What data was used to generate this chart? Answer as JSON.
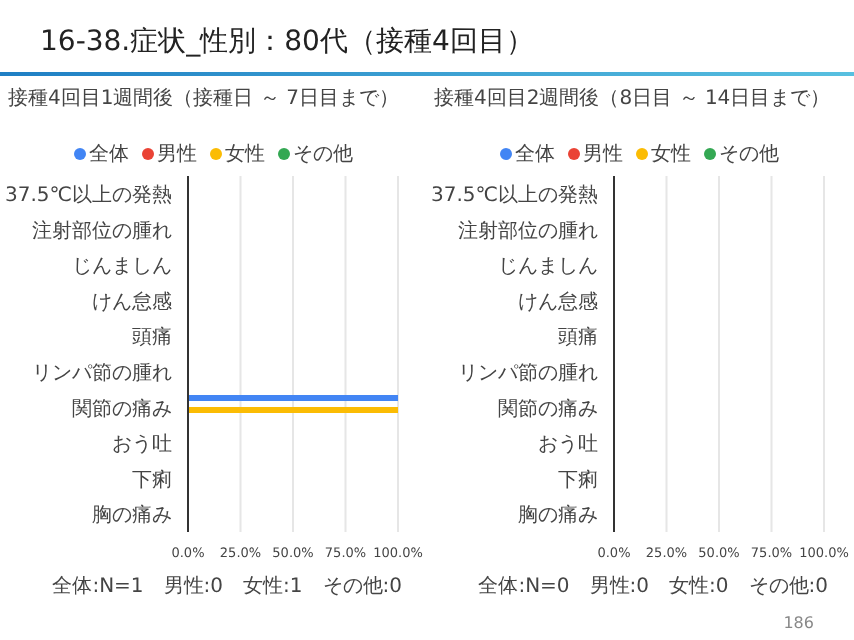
{
  "chart_data": [
    {
      "type": "bar",
      "orientation": "horizontal",
      "title": "16-38.症状_性別：80代（接種4回目）",
      "subtitle": "接種4回目1週間後（接種日 ～ 7日目まで）",
      "categories": [
        "37.5℃以上の発熱",
        "注射部位の腫れ",
        "じんましん",
        "けん怠感",
        "頭痛",
        "リンパ節の腫れ",
        "関節の痛み",
        "おう吐",
        "下痢",
        "胸の痛み"
      ],
      "series": [
        {
          "name": "全体",
          "color": "#4285f4",
          "values": [
            0,
            0,
            0,
            0,
            0,
            0,
            100,
            0,
            0,
            0
          ]
        },
        {
          "name": "男性",
          "color": "#ea4335",
          "values": [
            0,
            0,
            0,
            0,
            0,
            0,
            0,
            0,
            0,
            0
          ]
        },
        {
          "name": "女性",
          "color": "#fbbc04",
          "values": [
            0,
            0,
            0,
            0,
            0,
            0,
            100,
            0,
            0,
            0
          ]
        },
        {
          "name": "その他",
          "color": "#34a853",
          "values": [
            0,
            0,
            0,
            0,
            0,
            0,
            0,
            0,
            0,
            0
          ]
        }
      ],
      "xlim": [
        0,
        100
      ],
      "xticks": [
        {
          "value": 0,
          "label": "0.0%"
        },
        {
          "value": 25,
          "label": "25.0%"
        },
        {
          "value": 50,
          "label": "50.0%"
        },
        {
          "value": 75,
          "label": "75.0%"
        },
        {
          "value": 100,
          "label": "100.0%"
        }
      ],
      "grid": "x",
      "legend": "top",
      "annotations": [
        "全体:N=1　男性:0　女性:1　その他:0"
      ]
    },
    {
      "type": "bar",
      "orientation": "horizontal",
      "subtitle": "接種4回目2週間後（8日目 ～ 14日目まで）",
      "categories": [
        "37.5℃以上の発熱",
        "注射部位の腫れ",
        "じんましん",
        "けん怠感",
        "頭痛",
        "リンパ節の腫れ",
        "関節の痛み",
        "おう吐",
        "下痢",
        "胸の痛み"
      ],
      "series": [
        {
          "name": "全体",
          "color": "#4285f4",
          "values": [
            0,
            0,
            0,
            0,
            0,
            0,
            0,
            0,
            0,
            0
          ]
        },
        {
          "name": "男性",
          "color": "#ea4335",
          "values": [
            0,
            0,
            0,
            0,
            0,
            0,
            0,
            0,
            0,
            0
          ]
        },
        {
          "name": "女性",
          "color": "#fbbc04",
          "values": [
            0,
            0,
            0,
            0,
            0,
            0,
            0,
            0,
            0,
            0
          ]
        },
        {
          "name": "その他",
          "color": "#34a853",
          "values": [
            0,
            0,
            0,
            0,
            0,
            0,
            0,
            0,
            0,
            0
          ]
        }
      ],
      "xlim": [
        0,
        100
      ],
      "xticks": [
        {
          "value": 0,
          "label": "0.0%"
        },
        {
          "value": 25,
          "label": "25.0%"
        },
        {
          "value": 50,
          "label": "50.0%"
        },
        {
          "value": 75,
          "label": "75.0%"
        },
        {
          "value": 100,
          "label": "100.0%"
        }
      ],
      "grid": "x",
      "legend": "top",
      "annotations": [
        "全体:N=0　男性:0　女性:0　その他:0",
        "186"
      ]
    }
  ]
}
